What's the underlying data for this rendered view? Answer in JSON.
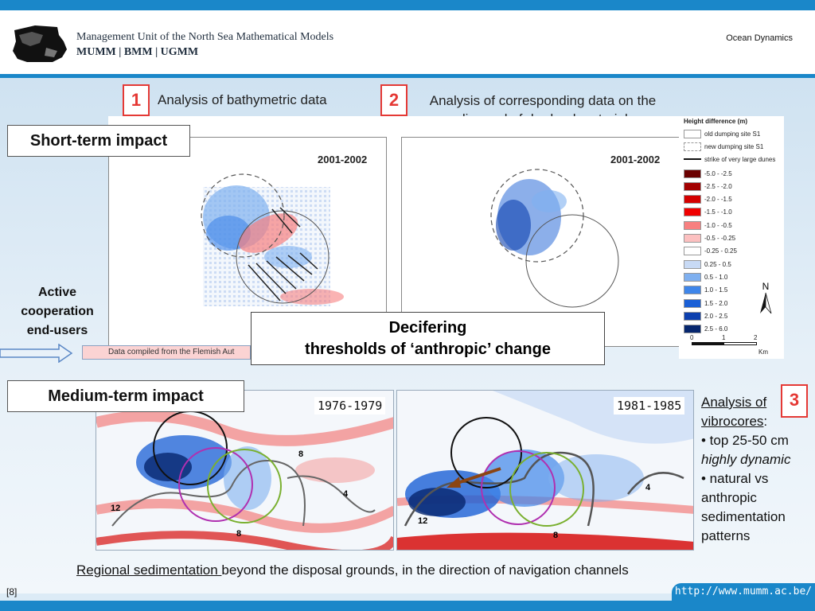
{
  "header": {
    "org_name": "Management Unit of the North Sea Mathematical Models",
    "org_acronyms": "MUMM | BMM | UGMM",
    "section": "Ocean Dynamics"
  },
  "analysis": [
    {
      "number": "1",
      "text": "Analysis of bathymetric data"
    },
    {
      "number": "2",
      "text_line1": "Analysis of corresponding data on the",
      "text_line2": "disposal of dredged material"
    },
    {
      "number": "3"
    }
  ],
  "labels": {
    "short_term": "Short-term impact",
    "medium_term": "Medium-term impact",
    "side_line1": "Active",
    "side_line2": "cooperation",
    "side_line3": "end-users",
    "decifer_line1": "Decifering",
    "decifer_line2": "thresholds of ‘anthropic’ change",
    "caption": "Data compiled from the Flemish Aut"
  },
  "short_maps": [
    {
      "period": "2001-2002"
    },
    {
      "period": "2001-2002"
    }
  ],
  "legend": {
    "title": "Height difference (m)",
    "symbols": [
      "old dumping site S1",
      "new dumping site S1",
      "strike of very large dunes"
    ],
    "classes": [
      {
        "label": "-5.0 - -2.5",
        "color": "#6b0000"
      },
      {
        "label": "-2.5 - -2.0",
        "color": "#a30000"
      },
      {
        "label": "-2.0 - -1.5",
        "color": "#d40000"
      },
      {
        "label": "-1.5 - -1.0",
        "color": "#f00000"
      },
      {
        "label": "-1.0 - -0.5",
        "color": "#f78080"
      },
      {
        "label": "-0.5 - -0.25",
        "color": "#fcc0c0"
      },
      {
        "label": "-0.25 - 0.25",
        "color": "#ffffff"
      },
      {
        "label": "0.25 - 0.5",
        "color": "#c8daf5"
      },
      {
        "label": "0.5 - 1.0",
        "color": "#7fb0f0"
      },
      {
        "label": "1.0 - 1.5",
        "color": "#3f86ea"
      },
      {
        "label": "1.5 - 2.0",
        "color": "#1a5fd6"
      },
      {
        "label": "2.0 - 2.5",
        "color": "#0c3fae"
      },
      {
        "label": "2.5 - 6.0",
        "color": "#06266e"
      }
    ],
    "north": "N",
    "scale_ticks": [
      "0",
      "1",
      "2"
    ],
    "scale_unit": "Km"
  },
  "medium_maps": [
    {
      "period": "1976-1979",
      "contours": [
        "12",
        "8",
        "4",
        "8"
      ]
    },
    {
      "period": "1981-1985",
      "contours": [
        "12",
        "4",
        "8"
      ]
    }
  ],
  "vibrocores": {
    "title_part1": "Analysis of",
    "title_part2": "vibrocores",
    "bullet1": "• top 25-50 cm",
    "bullet1_em": "highly dynamic",
    "bullet2_line1": "• natural vs",
    "bullet2_line2": "anthropic",
    "bullet2_line3": "sedimentation",
    "bullet2_line4": "patterns"
  },
  "footer": {
    "regional_u": "Regional sedimentation ",
    "regional_rest": "beyond the disposal grounds, in the direction of navigation channels",
    "page": "[8]",
    "url": "http://www.mumm.ac.be/"
  }
}
